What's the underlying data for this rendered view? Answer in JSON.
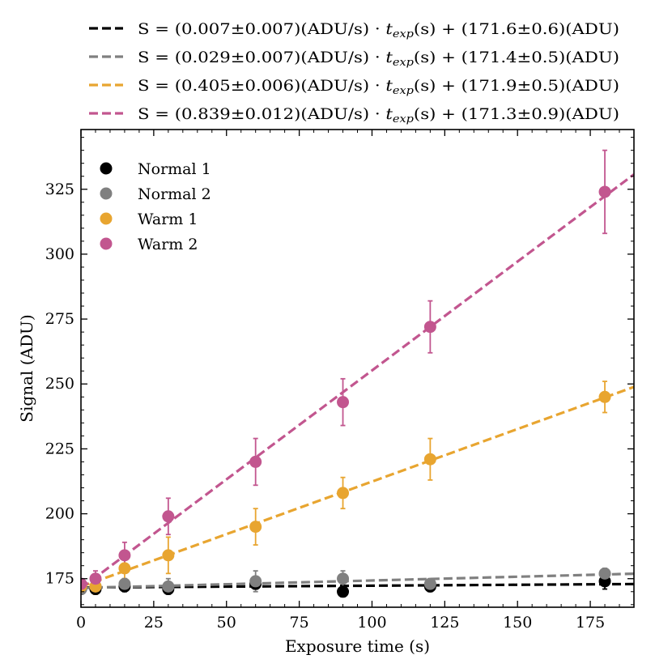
{
  "chart_data": {
    "type": "scatter",
    "xlabel": "Exposure time (s)",
    "ylabel": "Signal (ADU)",
    "xlim": [
      0,
      190
    ],
    "ylim": [
      164,
      348
    ],
    "xticks": [
      0,
      25,
      50,
      75,
      100,
      125,
      150,
      175
    ],
    "yticks": [
      175,
      200,
      225,
      250,
      275,
      300,
      325
    ],
    "grid": false,
    "legend_position": "upper-left",
    "series": [
      {
        "name": "Normal 1",
        "color": "#000000",
        "x": [
          0,
          5,
          15,
          30,
          60,
          90,
          120,
          180
        ],
        "y": [
          171,
          171,
          172,
          171,
          173,
          170,
          172,
          174
        ],
        "yerr": [
          2,
          2,
          2,
          2,
          2,
          2,
          2,
          3
        ]
      },
      {
        "name": "Normal 2",
        "color": "#808080",
        "x": [
          0,
          5,
          15,
          30,
          60,
          90,
          120,
          180
        ],
        "y": [
          171,
          172,
          173,
          172,
          174,
          175,
          173,
          177
        ],
        "yerr": [
          2,
          2,
          2,
          3,
          4,
          3,
          2,
          2
        ]
      },
      {
        "name": "Warm 1",
        "color": "#E8A530",
        "x": [
          0,
          5,
          15,
          30,
          60,
          90,
          120,
          180
        ],
        "y": [
          172,
          172,
          179,
          184,
          195,
          208,
          221,
          245
        ],
        "yerr": [
          2,
          3,
          4,
          7,
          7,
          6,
          8,
          6
        ]
      },
      {
        "name": "Warm 2",
        "color": "#C2568F",
        "x": [
          0,
          5,
          15,
          30,
          60,
          90,
          120,
          180
        ],
        "y": [
          173,
          175,
          184,
          199,
          220,
          243,
          272,
          324
        ],
        "yerr": [
          2,
          3,
          5,
          7,
          9,
          9,
          10,
          16
        ]
      }
    ],
    "fits": [
      {
        "color": "#000000",
        "slope": 0.007,
        "intercept": 171.6,
        "prefix": "S = (0.007±0.007)(ADU/s) · ",
        "var_main": "t",
        "var_sub": "exp",
        "suffix": "(s) + (171.6±0.6)(ADU)"
      },
      {
        "color": "#808080",
        "slope": 0.029,
        "intercept": 171.4,
        "prefix": "S = (0.029±0.007)(ADU/s) · ",
        "var_main": "t",
        "var_sub": "exp",
        "suffix": "(s) + (171.4±0.5)(ADU)"
      },
      {
        "color": "#E8A530",
        "slope": 0.405,
        "intercept": 171.9,
        "prefix": "S = (0.405±0.006)(ADU/s) · ",
        "var_main": "t",
        "var_sub": "exp",
        "suffix": "(s) + (171.9±0.5)(ADU)"
      },
      {
        "color": "#C2568F",
        "slope": 0.839,
        "intercept": 171.3,
        "prefix": "S = (0.839±0.012)(ADU/s) · ",
        "var_main": "t",
        "var_sub": "exp",
        "suffix": "(s) + (171.3±0.9)(ADU)"
      }
    ]
  }
}
